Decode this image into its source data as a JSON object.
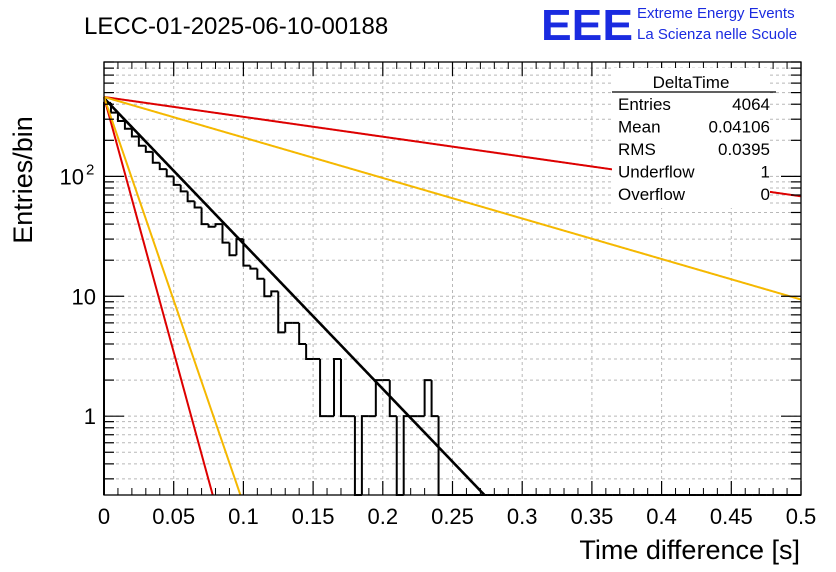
{
  "chart_data": {
    "type": "histogram",
    "title": "LECC-01-2025-06-10-00188",
    "xlabel": "Time difference [s]",
    "ylabel": "Entries/bin",
    "xlim": [
      0,
      0.5
    ],
    "ylim": [
      0.22,
      900
    ],
    "yscale": "log",
    "grid": true,
    "x_ticks": [
      {
        "v": 0,
        "label": "0"
      },
      {
        "v": 0.05,
        "label": "0.05"
      },
      {
        "v": 0.1,
        "label": "0.1"
      },
      {
        "v": 0.15,
        "label": "0.15"
      },
      {
        "v": 0.2,
        "label": "0.2"
      },
      {
        "v": 0.25,
        "label": "0.25"
      },
      {
        "v": 0.3,
        "label": "0.3"
      },
      {
        "v": 0.35,
        "label": "0.35"
      },
      {
        "v": 0.4,
        "label": "0.4"
      },
      {
        "v": 0.45,
        "label": "0.45"
      },
      {
        "v": 0.5,
        "label": "0.5"
      }
    ],
    "y_ticks": [
      {
        "v": 1,
        "label": "1"
      },
      {
        "v": 10,
        "label": "10"
      },
      {
        "v": 100,
        "label": "10",
        "sup": "2"
      }
    ],
    "histogram": {
      "name": "DeltaTime",
      "bin_width": 0.005,
      "x_start": 0,
      "counts": [
        410,
        340,
        290,
        250,
        215,
        180,
        160,
        130,
        115,
        100,
        85,
        75,
        62,
        55,
        40,
        38,
        40,
        28,
        22,
        30,
        18,
        17,
        14,
        10,
        11,
        5,
        6,
        6,
        4,
        3,
        3,
        1,
        1,
        3,
        1,
        1,
        0.1,
        1,
        1,
        2,
        2,
        1,
        0.1,
        1,
        1,
        1,
        2,
        1,
        0.1,
        0.1,
        0.1,
        0.1,
        0.1,
        0.1,
        0.1,
        0.1,
        0.1,
        0.1,
        0.1,
        0.1,
        0.1,
        0.1,
        0.1,
        0.1,
        0.1,
        0.1,
        0.1,
        0.1,
        0.1,
        0.1,
        0.1,
        0.1,
        0.1,
        0.1,
        0.1,
        0.1,
        0.1,
        0.1,
        0.1,
        0.1,
        0.1,
        0.1,
        0.1,
        0.1,
        0.1,
        0.1,
        0.1,
        0.1,
        0.1,
        0.1,
        0.1,
        0.1,
        0.1,
        0.1,
        0.1,
        0.1,
        0.1,
        0.1,
        0.1,
        0.1
      ]
    },
    "curves": [
      {
        "color": "#000000",
        "width": 2.6,
        "A": 450,
        "tau": 0.0358
      },
      {
        "color": "#dd0000",
        "width": 2,
        "A": 460,
        "tau": 0.262
      },
      {
        "color": "#f5b800",
        "width": 2,
        "A": 460,
        "tau": 0.1285
      },
      {
        "color": "#dd0000",
        "width": 2,
        "A": 460,
        "tau": 0.0102
      },
      {
        "color": "#f5b800",
        "width": 2,
        "A": 460,
        "tau": 0.0128
      }
    ],
    "stats": {
      "title": "DeltaTime",
      "rows": [
        {
          "label": "Entries",
          "value": "4064"
        },
        {
          "label": "Mean",
          "value": "0.04106"
        },
        {
          "label": "RMS",
          "value": "0.0395"
        },
        {
          "label": "Underflow",
          "value": "1"
        },
        {
          "label": "Overflow",
          "value": "0"
        }
      ]
    }
  },
  "logo": {
    "text": "EEE",
    "line1": "Extreme Energy Events",
    "line2": "La Scienza nelle Scuole",
    "color": "#1a2be0"
  }
}
